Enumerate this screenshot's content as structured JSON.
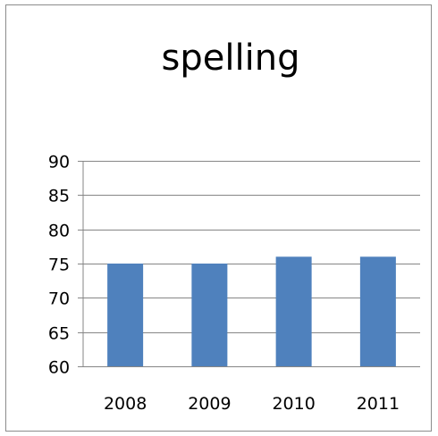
{
  "chart_data": {
    "type": "bar",
    "title": "spelling",
    "categories": [
      "2008",
      "2009",
      "2010",
      "2011"
    ],
    "series": [
      {
        "values": [
          75,
          75,
          76,
          76
        ],
        "color": "#4f81bd"
      }
    ],
    "ylim": [
      60,
      90
    ],
    "yticks": [
      "90",
      "85",
      "80",
      "75",
      "70",
      "65",
      "60"
    ],
    "grid": true,
    "legend": "none"
  }
}
